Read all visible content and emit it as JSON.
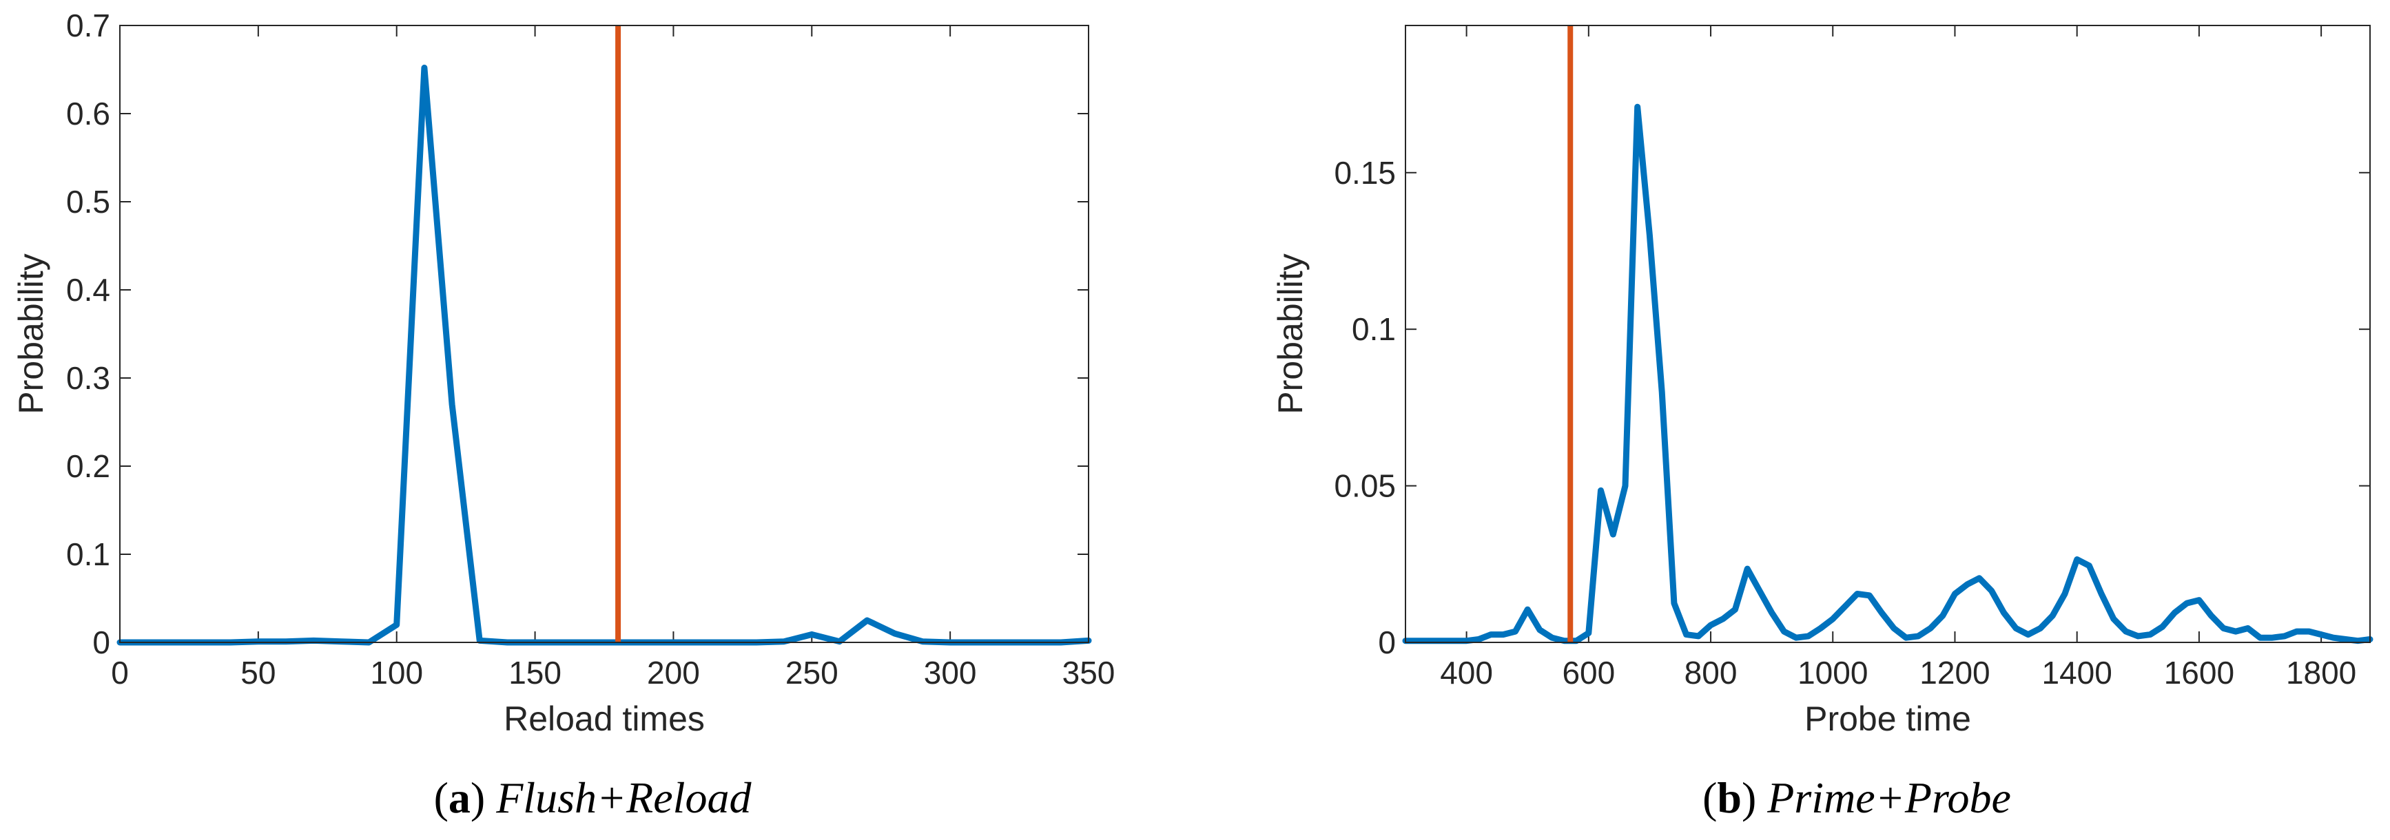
{
  "colors": {
    "series": "#0072BD",
    "marker": "#D95319",
    "axes": "#262626"
  },
  "chart_data": [
    {
      "type": "line",
      "caption_letter": "a",
      "caption_title": "Flush+Reload",
      "xlabel": "Reload times",
      "ylabel": "Probability",
      "xlim": [
        0,
        350
      ],
      "ylim": [
        0,
        0.7
      ],
      "xticks": [
        0,
        50,
        100,
        150,
        200,
        250,
        300,
        350
      ],
      "yticks": [
        0,
        0.1,
        0.2,
        0.3,
        0.4,
        0.5,
        0.6,
        0.7
      ],
      "xtick_labels": [
        "0",
        "50",
        "100",
        "150",
        "200",
        "250",
        "300",
        "350"
      ],
      "ytick_labels": [
        "0",
        "0.1",
        "0.2",
        "0.3",
        "0.4",
        "0.5",
        "0.6",
        "0.7"
      ],
      "grid": false,
      "vertical_line_x": 180,
      "series": [
        {
          "x": [
            0,
            10,
            20,
            30,
            40,
            50,
            60,
            70,
            80,
            90,
            100,
            110,
            120,
            130,
            140,
            150,
            160,
            170,
            180,
            190,
            200,
            210,
            220,
            230,
            240,
            250,
            260,
            270,
            280,
            290,
            300,
            310,
            320,
            330,
            340,
            350
          ],
          "y": [
            0,
            0,
            0,
            0,
            0,
            0.001,
            0.001,
            0.002,
            0.001,
            0,
            0.02,
            0.652,
            0.27,
            0.002,
            0,
            0,
            0,
            0,
            0,
            0,
            0,
            0,
            0,
            0,
            0.001,
            0.009,
            0.001,
            0.025,
            0.01,
            0.001,
            0,
            0,
            0,
            0,
            0,
            0.002
          ]
        }
      ]
    },
    {
      "type": "line",
      "caption_letter": "b",
      "caption_title": "Prime+Probe",
      "xlabel": "Probe time",
      "ylabel": "Probability",
      "xlim": [
        300,
        1880
      ],
      "ylim": [
        0,
        0.197
      ],
      "xticks": [
        400,
        600,
        800,
        1000,
        1200,
        1400,
        1600,
        1800
      ],
      "yticks": [
        0,
        0.05,
        0.1,
        0.15
      ],
      "xtick_labels": [
        "400",
        "600",
        "800",
        "1000",
        "1200",
        "1400",
        "1600",
        "1800"
      ],
      "ytick_labels": [
        "0",
        "0.05",
        "0.1",
        "0.15"
      ],
      "grid": false,
      "vertical_line_x": 570,
      "series": [
        {
          "x": [
            300,
            320,
            340,
            360,
            380,
            400,
            420,
            440,
            460,
            480,
            500,
            520,
            540,
            560,
            580,
            600,
            620,
            640,
            660,
            680,
            700,
            720,
            740,
            760,
            780,
            800,
            820,
            840,
            860,
            880,
            900,
            920,
            940,
            960,
            980,
            1000,
            1020,
            1040,
            1060,
            1080,
            1100,
            1120,
            1140,
            1160,
            1180,
            1200,
            1220,
            1240,
            1260,
            1280,
            1300,
            1320,
            1340,
            1360,
            1380,
            1400,
            1420,
            1440,
            1460,
            1480,
            1500,
            1520,
            1540,
            1560,
            1580,
            1600,
            1620,
            1640,
            1660,
            1680,
            1700,
            1720,
            1740,
            1760,
            1780,
            1800,
            1820,
            1840,
            1860,
            1880
          ],
          "y": [
            0.0005,
            0.0005,
            0.0005,
            0.0005,
            0.0005,
            0.0005,
            0.001,
            0.0025,
            0.0025,
            0.0035,
            0.0105,
            0.004,
            0.0015,
            0.0005,
            0.0005,
            0.003,
            0.0485,
            0.0345,
            0.05,
            0.171,
            0.13,
            0.08,
            0.0125,
            0.0025,
            0.002,
            0.0055,
            0.0075,
            0.0105,
            0.0235,
            0.0165,
            0.0095,
            0.0035,
            0.0015,
            0.002,
            0.0045,
            0.0075,
            0.0115,
            0.0155,
            0.015,
            0.0095,
            0.0045,
            0.0015,
            0.002,
            0.0045,
            0.0085,
            0.0155,
            0.0185,
            0.0205,
            0.0165,
            0.0095,
            0.0045,
            0.0025,
            0.0045,
            0.0085,
            0.0155,
            0.0265,
            0.0245,
            0.0155,
            0.0075,
            0.0035,
            0.002,
            0.0025,
            0.005,
            0.0095,
            0.0125,
            0.0135,
            0.0085,
            0.0045,
            0.0035,
            0.0045,
            0.0015,
            0.0015,
            0.002,
            0.0035,
            0.0035,
            0.0025,
            0.0015,
            0.001,
            0.0005,
            0.001
          ]
        }
      ]
    }
  ]
}
